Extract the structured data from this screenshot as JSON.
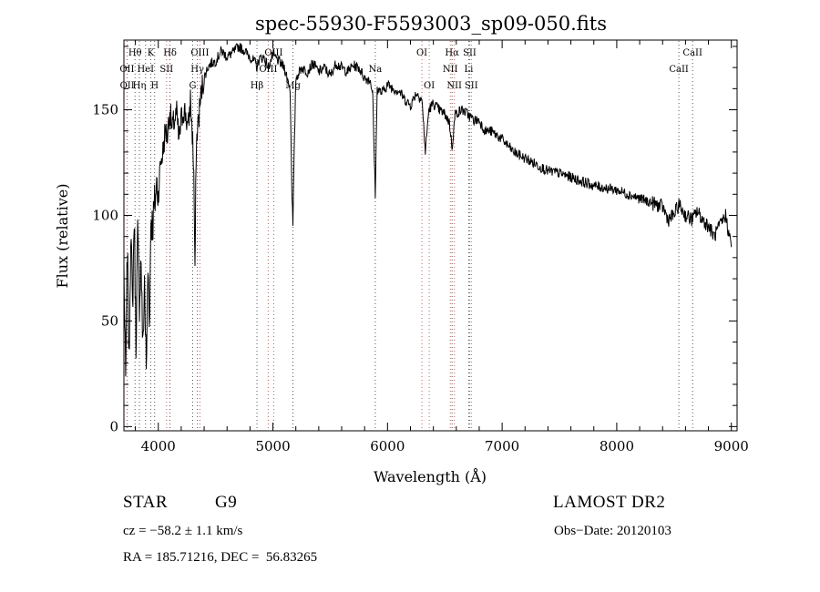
{
  "chart_data": {
    "type": "line",
    "title": "spec-55930-F5593003_sp09-050.fits",
    "xlabel": "Wavelength (Å)",
    "ylabel": "Flux (relative)",
    "xlim": [
      3700,
      9050
    ],
    "ylim": [
      -2,
      183
    ],
    "xticks": [
      4000,
      5000,
      6000,
      7000,
      8000,
      9000
    ],
    "yticks": [
      0,
      50,
      100,
      150
    ],
    "line_color": "#000000",
    "marker_colors": {
      "absorption": "#555555",
      "emission": "#c06060"
    },
    "series": [
      {
        "x": [
          3700,
          3715,
          3730,
          3745,
          3760,
          3775,
          3790,
          3805,
          3820,
          3835,
          3850,
          3865,
          3880,
          3895,
          3910,
          3925,
          3935,
          3950,
          3968,
          3985,
          4000,
          4020,
          4040,
          4060,
          4080,
          4101,
          4120,
          4140,
          4160,
          4180,
          4200,
          4220,
          4240,
          4260,
          4280,
          4300,
          4310,
          4320,
          4330,
          4340,
          4360,
          4380,
          4400,
          4430,
          4460,
          4500,
          4550,
          4600,
          4650,
          4700,
          4750,
          4800,
          4850,
          4861,
          4880,
          4920,
          4960,
          5000,
          5050,
          5100,
          5150,
          5167,
          5175,
          5184,
          5200,
          5250,
          5300,
          5350,
          5400,
          5450,
          5500,
          5550,
          5600,
          5650,
          5700,
          5750,
          5800,
          5850,
          5870,
          5893,
          5910,
          5950,
          6000,
          6050,
          6100,
          6150,
          6200,
          6250,
          6300,
          6330,
          6360,
          6400,
          6450,
          6500,
          6540,
          6563,
          6590,
          6650,
          6700,
          6750,
          6800,
          6850,
          6900,
          6950,
          7000,
          7100,
          7200,
          7300,
          7400,
          7500,
          7600,
          7700,
          7800,
          7900,
          8000,
          8100,
          8200,
          8300,
          8400,
          8450,
          8498,
          8542,
          8600,
          8662,
          8700,
          8750,
          8800,
          8850,
          8900,
          8950,
          9000
        ],
        "y": [
          75,
          20,
          85,
          30,
          95,
          55,
          100,
          40,
          90,
          60,
          80,
          35,
          70,
          25,
          75,
          50,
          100,
          95,
          105,
          115,
          110,
          125,
          130,
          140,
          138,
          150,
          140,
          145,
          148,
          135,
          145,
          150,
          148,
          140,
          155,
          135,
          120,
          70,
          130,
          140,
          150,
          160,
          165,
          170,
          172,
          173,
          178,
          175,
          177,
          180,
          178,
          175,
          172,
          170,
          174,
          175,
          170,
          176,
          173,
          170,
          160,
          110,
          95,
          125,
          165,
          170,
          168,
          172,
          168,
          170,
          166,
          172,
          170,
          168,
          171,
          170,
          165,
          164,
          158,
          110,
          160,
          158,
          162,
          160,
          159,
          155,
          152,
          158,
          155,
          130,
          150,
          153,
          150,
          148,
          144,
          132,
          148,
          150,
          148,
          145,
          145,
          140,
          140,
          138,
          136,
          130,
          127,
          124,
          121,
          120,
          118,
          116,
          114,
          113,
          112,
          110,
          108,
          106,
          104,
          98,
          100,
          105,
          100,
          98,
          102,
          98,
          95,
          90,
          95,
          100,
          85
        ]
      }
    ],
    "line_ids": [
      {
        "label": "Hθ",
        "wl": 3797,
        "row": 0,
        "type": "absorption"
      },
      {
        "label": "K",
        "wl": 3934,
        "row": 0,
        "type": "absorption"
      },
      {
        "label": "Hδ",
        "wl": 4102,
        "row": 0,
        "type": "absorption"
      },
      {
        "label": "OIII",
        "wl": 4363,
        "row": 0,
        "type": "emission"
      },
      {
        "label": "OIII",
        "wl": 5007,
        "row": 0,
        "type": "emission"
      },
      {
        "label": "OI",
        "wl": 6300,
        "row": 0,
        "type": "emission"
      },
      {
        "label": "Hα",
        "wl": 6563,
        "row": 0,
        "type": "absorption"
      },
      {
        "label": "SII",
        "wl": 6717,
        "row": 0,
        "type": "emission"
      },
      {
        "label": "CaII",
        "wl": 8662,
        "row": 0,
        "type": "absorption"
      },
      {
        "label": "OII",
        "wl": 3727,
        "row": 1,
        "type": "emission"
      },
      {
        "label": "HeI",
        "wl": 3889,
        "row": 1,
        "type": "absorption"
      },
      {
        "label": "SII",
        "wl": 4072,
        "row": 1,
        "type": "emission"
      },
      {
        "label": "Hγ",
        "wl": 4341,
        "row": 1,
        "type": "absorption"
      },
      {
        "label": "OIII",
        "wl": 4959,
        "row": 1,
        "type": "emission"
      },
      {
        "label": "Na",
        "wl": 5893,
        "row": 1,
        "type": "absorption"
      },
      {
        "label": "NII",
        "wl": 6548,
        "row": 1,
        "type": "emission"
      },
      {
        "label": "Li",
        "wl": 6708,
        "row": 1,
        "type": "absorption"
      },
      {
        "label": "CaII",
        "wl": 8542,
        "row": 1,
        "type": "absorption"
      },
      {
        "label": "OII",
        "wl": 3729,
        "row": 2,
        "type": "emission"
      },
      {
        "label": "Hη",
        "wl": 3835,
        "row": 2,
        "type": "absorption"
      },
      {
        "label": "H",
        "wl": 3968,
        "row": 2,
        "type": "absorption"
      },
      {
        "label": "G",
        "wl": 4300,
        "row": 2,
        "type": "absorption"
      },
      {
        "label": "Hβ",
        "wl": 4861,
        "row": 2,
        "type": "absorption"
      },
      {
        "label": "Mg",
        "wl": 5175,
        "row": 2,
        "type": "absorption"
      },
      {
        "label": "OI",
        "wl": 6364,
        "row": 2,
        "type": "emission"
      },
      {
        "label": "NII",
        "wl": 6583,
        "row": 2,
        "type": "emission"
      },
      {
        "label": "SII",
        "wl": 6731,
        "row": 2,
        "type": "emission"
      }
    ]
  },
  "footer": {
    "class_label": "STAR",
    "subclass": "G9",
    "survey": "LAMOST DR2",
    "cz": "cz = −58.2 ± 1.1 km/s",
    "obs_date": "Obs−Date: 20120103",
    "coords": "RA = 185.71216, DEC =  56.83265"
  }
}
